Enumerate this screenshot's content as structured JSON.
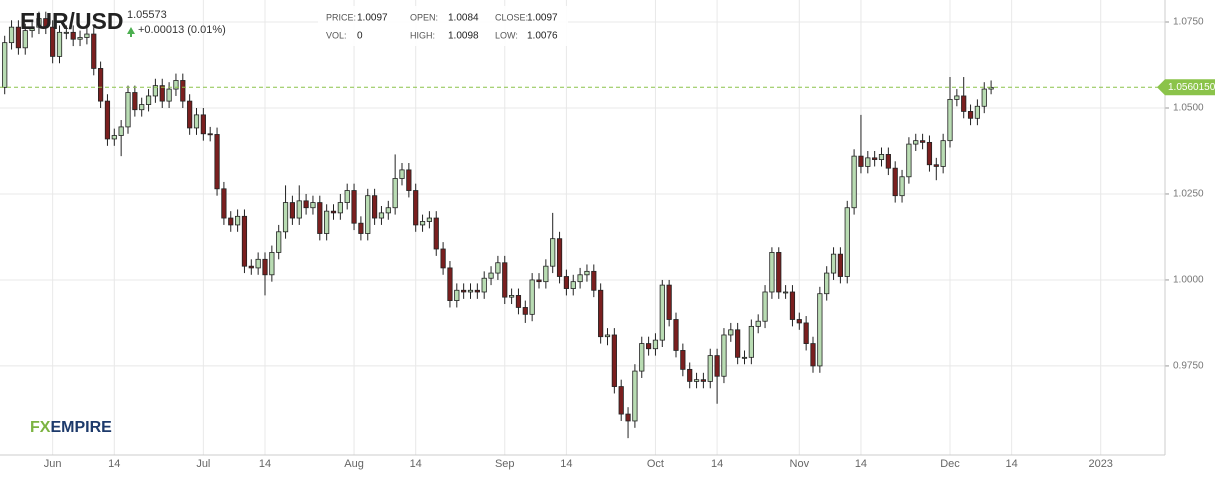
{
  "header": {
    "symbol": "EUR/USD",
    "quote": "1.05573",
    "change": "+0.00013 (0.01%)",
    "info": [
      {
        "label": "PRICE:",
        "value": "1.0097"
      },
      {
        "label": "OPEN:",
        "value": "1.0084"
      },
      {
        "label": "CLOSE:",
        "value": "1.0097"
      },
      {
        "label": "VOL:",
        "value": "0"
      },
      {
        "label": "HIGH:",
        "value": "1.0098"
      },
      {
        "label": "LOW:",
        "value": "1.0076"
      }
    ]
  },
  "logo": {
    "prefix": "FX",
    "name": "EMPIRE"
  },
  "chart_data": {
    "type": "candlestick",
    "title": "EUR/USD",
    "categories": [
      null,
      null,
      null,
      null,
      null,
      null,
      null,
      "Jun",
      null,
      null,
      null,
      null,
      null,
      null,
      null,
      null,
      "14",
      null,
      null,
      null,
      null,
      null,
      null,
      null,
      null,
      null,
      null,
      null,
      null,
      "Jul",
      null,
      null,
      null,
      null,
      null,
      null,
      null,
      null,
      "14",
      null,
      null,
      null,
      null,
      null,
      null,
      null,
      null,
      null,
      null,
      null,
      null,
      "Aug",
      null,
      null,
      null,
      null,
      null,
      null,
      null,
      null,
      "14",
      null,
      null,
      null,
      null,
      null,
      null,
      null,
      null,
      null,
      null,
      null,
      null,
      "Sep",
      null,
      null,
      null,
      null,
      null,
      null,
      null,
      null,
      "14",
      null,
      null,
      null,
      null,
      null,
      null,
      null,
      null,
      null,
      null,
      null,
      null,
      "Oct",
      null,
      null,
      null,
      null,
      null,
      null,
      null,
      null,
      "14",
      null,
      null,
      null,
      null,
      null,
      null,
      null,
      null,
      null,
      null,
      null,
      "Nov",
      null,
      null,
      null,
      null,
      null,
      null,
      null,
      null,
      "14",
      null,
      null,
      null,
      null,
      null,
      null,
      null,
      null,
      null,
      null,
      null,
      null,
      "Dec",
      null,
      null,
      null,
      null,
      null,
      null,
      null,
      null,
      "14",
      null,
      null,
      null,
      null,
      null,
      null,
      null,
      null,
      null,
      null,
      null,
      null,
      "2023"
    ],
    "open": [
      1.056,
      1.069,
      1.0735,
      1.0675,
      1.0725,
      1.0735,
      1.076,
      1.0735,
      1.065,
      1.072,
      1.072,
      1.07,
      1.0705,
      1.0715,
      1.0615,
      1.052,
      1.041,
      1.042,
      1.0445,
      1.0545,
      1.0495,
      1.051,
      1.0535,
      1.0565,
      1.052,
      1.0555,
      1.058,
      1.052,
      1.0442,
      1.048,
      1.0425,
      1.0423,
      1.0265,
      1.018,
      1.016,
      1.0185,
      1.004,
      1.0035,
      1.006,
      1.0015,
      1.008,
      1.014,
      1.0225,
      1.018,
      1.023,
      1.021,
      1.0225,
      1.0135,
      1.02,
      1.0195,
      1.0225,
      1.026,
      1.0165,
      1.0135,
      1.0245,
      1.018,
      1.0195,
      1.021,
      1.0295,
      1.032,
      1.026,
      1.016,
      1.017,
      1.018,
      1.009,
      1.0035,
      0.994,
      0.997,
      0.9965,
      0.997,
      0.9965,
      1.0005,
      1.002,
      1.005,
      0.995,
      0.9955,
      0.992,
      0.99,
      1.0,
      0.9995,
      1.004,
      1.012,
      1.001,
      0.9975,
      0.9995,
      1.0015,
      1.0025,
      0.997,
      0.9835,
      0.984,
      0.969,
      0.961,
      0.959,
      0.9735,
      0.9815,
      0.98,
      0.9825,
      0.9985,
      0.9885,
      0.9795,
      0.974,
      0.9705,
      0.971,
      0.9705,
      0.978,
      0.972,
      0.984,
      0.9855,
      0.9775,
      0.9775,
      0.9865,
      0.988,
      0.9965,
      1.008,
      0.9965,
      0.9965,
      0.9885,
      0.9875,
      0.9815,
      0.975,
      0.996,
      1.002,
      1.0075,
      1.001,
      1.021,
      1.036,
      1.033,
      1.0355,
      1.035,
      1.0365,
      1.0325,
      1.0245,
      1.03,
      1.0395,
      1.0405,
      1.04,
      1.0335,
      1.033,
      1.0405,
      1.0525,
      1.0535,
      1.049,
      1.047,
      1.0505,
      1.0555,
      null,
      null,
      null,
      null,
      null,
      null,
      null,
      null,
      null,
      null,
      null,
      null,
      null,
      null,
      null,
      null
    ],
    "high": [
      1.071,
      1.0755,
      1.0755,
      1.0745,
      1.0755,
      1.078,
      1.078,
      1.0755,
      1.074,
      1.074,
      1.074,
      1.0725,
      1.0735,
      1.0735,
      1.0635,
      1.054,
      1.044,
      1.0465,
      1.0565,
      1.0565,
      1.053,
      1.0555,
      1.0585,
      1.0585,
      1.0575,
      1.06,
      1.06,
      1.054,
      1.05,
      1.05,
      1.0445,
      1.0443,
      1.0285,
      1.02,
      1.0205,
      1.0205,
      1.006,
      1.008,
      1.008,
      1.01,
      1.016,
      1.0275,
      1.0245,
      1.0275,
      1.025,
      1.0245,
      1.0245,
      1.022,
      1.022,
      1.025,
      1.028,
      1.028,
      1.0185,
      1.0265,
      1.0265,
      1.0215,
      1.023,
      1.0365,
      1.034,
      1.034,
      1.028,
      1.019,
      1.02,
      1.02,
      1.011,
      1.0055,
      0.999,
      0.999,
      0.999,
      0.999,
      1.0025,
      1.004,
      1.007,
      1.007,
      0.9975,
      0.9975,
      0.994,
      1.002,
      1.002,
      1.006,
      1.0195,
      1.014,
      1.003,
      1.0015,
      1.0035,
      1.0045,
      1.0045,
      0.999,
      0.986,
      0.986,
      0.971,
      0.963,
      0.9755,
      0.9835,
      0.9835,
      0.9845,
      1.0,
      1.0,
      0.9905,
      0.9815,
      0.976,
      0.973,
      0.973,
      0.98,
      0.98,
      0.986,
      0.9875,
      0.9875,
      0.9795,
      0.9885,
      0.99,
      0.9985,
      1.0095,
      1.0095,
      0.9985,
      0.9985,
      0.9905,
      0.9895,
      0.9835,
      0.998,
      1.004,
      1.0095,
      1.0095,
      1.023,
      1.038,
      1.048,
      1.0375,
      1.0375,
      1.0385,
      1.0385,
      1.0345,
      1.032,
      1.0415,
      1.0425,
      1.0425,
      1.042,
      1.0355,
      1.0425,
      1.059,
      1.0555,
      1.059,
      1.051,
      1.0525,
      1.0575,
      1.058,
      null,
      null,
      null,
      null,
      null,
      null,
      null,
      null,
      null,
      null,
      null,
      null,
      null,
      null,
      null,
      null
    ],
    "low": [
      1.054,
      1.067,
      1.0655,
      1.0655,
      1.0705,
      1.0715,
      1.0715,
      1.063,
      1.063,
      1.07,
      1.068,
      1.068,
      1.0685,
      1.0595,
      1.05,
      1.039,
      1.039,
      1.036,
      1.0425,
      1.0475,
      1.0475,
      1.049,
      1.0515,
      1.05,
      1.05,
      1.0535,
      1.05,
      1.0422,
      1.0422,
      1.0405,
      1.0403,
      1.0245,
      1.016,
      1.014,
      1.014,
      1.002,
      1.0015,
      1.0015,
      0.9955,
      0.9995,
      1.006,
      1.012,
      1.016,
      1.016,
      1.019,
      1.019,
      1.0115,
      1.0115,
      1.0175,
      1.0175,
      1.0205,
      1.0145,
      1.0115,
      1.0115,
      1.016,
      1.016,
      1.0175,
      1.019,
      1.0275,
      1.024,
      1.014,
      1.014,
      1.015,
      1.007,
      1.0015,
      0.992,
      0.992,
      0.9945,
      0.9945,
      0.9945,
      0.9945,
      0.9985,
      1.0,
      0.993,
      0.993,
      0.99,
      0.9875,
      0.988,
      0.9975,
      0.9975,
      1.002,
      0.999,
      0.9955,
      0.9955,
      0.9975,
      0.9995,
      0.995,
      0.9815,
      0.981,
      0.967,
      0.959,
      0.954,
      0.957,
      0.9715,
      0.978,
      0.978,
      0.9805,
      0.9865,
      0.9775,
      0.972,
      0.9685,
      0.9685,
      0.9685,
      0.9685,
      0.964,
      0.97,
      0.982,
      0.9755,
      0.9755,
      0.9755,
      0.9845,
      0.986,
      0.9945,
      0.9945,
      0.9945,
      0.9865,
      0.9855,
      0.9795,
      0.973,
      0.973,
      0.994,
      1.0,
      0.999,
      0.999,
      1.019,
      1.031,
      1.031,
      1.033,
      1.033,
      1.0305,
      1.0225,
      1.0225,
      1.028,
      1.0375,
      1.038,
      1.0315,
      1.029,
      1.031,
      1.0385,
      1.0505,
      1.047,
      1.045,
      1.045,
      1.0485,
      1.054,
      null,
      null,
      null,
      null,
      null,
      null,
      null,
      null,
      null,
      null,
      null,
      null,
      null,
      null,
      null,
      null
    ],
    "close": [
      1.069,
      1.0735,
      1.0675,
      1.0725,
      1.0735,
      1.076,
      1.0735,
      1.065,
      1.072,
      1.072,
      1.07,
      1.0705,
      1.0715,
      1.0615,
      1.052,
      1.041,
      1.042,
      1.0445,
      1.0545,
      1.0495,
      1.051,
      1.0535,
      1.0565,
      1.052,
      1.0555,
      1.058,
      1.052,
      1.0442,
      1.048,
      1.0425,
      1.0423,
      1.0265,
      1.018,
      1.016,
      1.0185,
      1.004,
      1.0035,
      1.006,
      1.0015,
      1.008,
      1.014,
      1.0225,
      1.018,
      1.023,
      1.021,
      1.0225,
      1.0135,
      1.02,
      1.0195,
      1.0225,
      1.026,
      1.0165,
      1.0135,
      1.0245,
      1.018,
      1.0195,
      1.021,
      1.0295,
      1.032,
      1.026,
      1.016,
      1.017,
      1.018,
      1.009,
      1.0035,
      0.994,
      0.997,
      0.9965,
      0.997,
      0.9965,
      1.0005,
      1.002,
      1.005,
      0.995,
      0.9955,
      0.992,
      0.99,
      1.0,
      0.9995,
      1.004,
      1.012,
      1.001,
      0.9975,
      0.9995,
      1.0015,
      1.0025,
      0.997,
      0.9835,
      0.984,
      0.969,
      0.961,
      0.959,
      0.9735,
      0.9815,
      0.98,
      0.9825,
      0.9985,
      0.9885,
      0.9795,
      0.974,
      0.9705,
      0.971,
      0.9705,
      0.978,
      0.972,
      0.984,
      0.9855,
      0.9775,
      0.9775,
      0.9865,
      0.988,
      0.9965,
      1.008,
      0.9965,
      0.9965,
      0.9885,
      0.9875,
      0.9815,
      0.975,
      0.996,
      1.002,
      1.0075,
      1.001,
      1.021,
      1.036,
      1.033,
      1.0355,
      1.035,
      1.0365,
      1.0325,
      1.0245,
      1.03,
      1.0395,
      1.0405,
      1.04,
      1.0335,
      1.033,
      1.0405,
      1.0525,
      1.0535,
      1.049,
      1.047,
      1.0505,
      1.0555,
      1.056,
      null,
      null,
      null,
      null,
      null,
      null,
      null,
      null,
      null,
      null,
      null,
      null,
      null,
      null,
      null,
      null
    ],
    "up_color": "#b9dcb3",
    "down_color": "#7a1f1f",
    "outline_color": "#222222",
    "ylim": [
      0.9491,
      1.0814
    ],
    "yticks": [
      {
        "value": 0.975,
        "label": "0.9750"
      },
      {
        "value": 1.0,
        "label": "1.0000"
      },
      {
        "value": 1.025,
        "label": "1.0250"
      },
      {
        "value": 1.05,
        "label": "1.0500"
      },
      {
        "value": 1.075,
        "label": "1.0750"
      }
    ],
    "grid": true,
    "last_price": {
      "value": 1.056015,
      "label": "1.0560150",
      "color": "#8bc34a"
    }
  }
}
